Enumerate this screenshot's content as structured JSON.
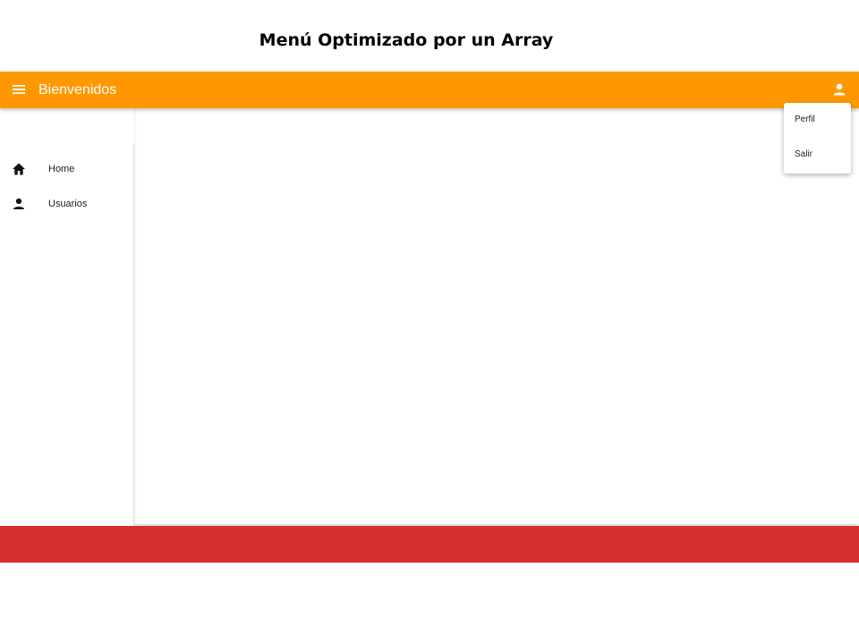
{
  "slide": {
    "title": "Menú Optimizado por un Array"
  },
  "toolbar": {
    "title": "Bienvenidos",
    "menu_icon": "hamburger-menu-icon",
    "account_icon": "person-icon",
    "background_color": "#ff9800"
  },
  "sidebar": {
    "items": [
      {
        "label": "Home",
        "icon": "home-icon"
      },
      {
        "label": "Usuarios",
        "icon": "person-icon"
      }
    ]
  },
  "account_menu": {
    "items": [
      {
        "label": "Perfil"
      },
      {
        "label": "Salir"
      }
    ]
  },
  "footer": {
    "background_color": "#d32f2f"
  }
}
